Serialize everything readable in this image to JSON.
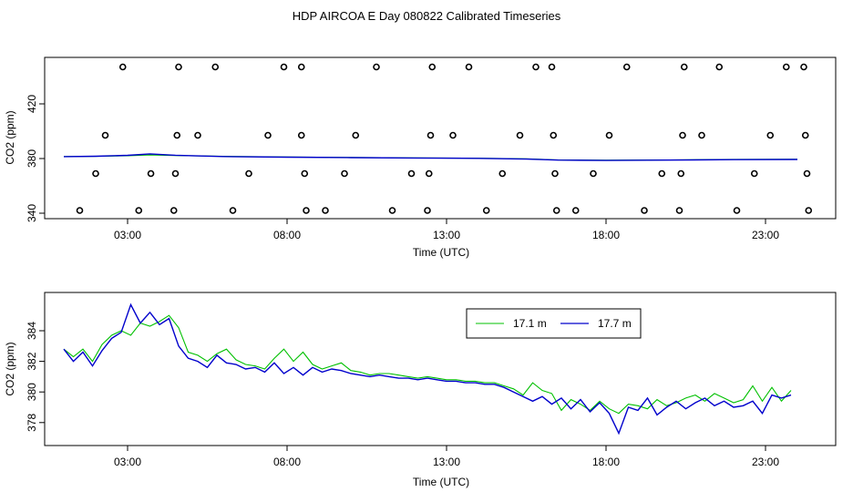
{
  "title": "HDP AIRCOA E  Day 080822  Calibrated Timeseries",
  "colors": {
    "green": "#00c000",
    "blue": "#0000cc",
    "axis": "#000000"
  },
  "chart_data": [
    {
      "type": "scatter",
      "xlabel": "Time (UTC)",
      "ylabel": "CO2 (ppm)",
      "xlim": [
        0.4,
        25.2
      ],
      "ylim": [
        336,
        454
      ],
      "x_ticks": [
        3,
        8,
        13,
        18,
        23
      ],
      "x_tick_labels": [
        "03:00",
        "08:00",
        "13:00",
        "18:00",
        "23:00"
      ],
      "y_ticks": [
        340,
        380,
        420
      ],
      "y_tick_labels": [
        "340",
        "380",
        "420"
      ],
      "grid": false,
      "series": [
        {
          "role": "calibration-points",
          "marker": "open-circle",
          "color": "#000000",
          "points": [
            [
              1.5,
              342
            ],
            [
              2.0,
              369
            ],
            [
              2.3,
              397
            ],
            [
              2.85,
              447
            ],
            [
              3.35,
              342
            ],
            [
              3.73,
              369
            ],
            [
              4.45,
              342
            ],
            [
              4.5,
              369
            ],
            [
              4.55,
              397
            ],
            [
              4.6,
              447
            ],
            [
              5.2,
              397
            ],
            [
              5.75,
              447
            ],
            [
              6.3,
              342
            ],
            [
              6.8,
              369
            ],
            [
              7.4,
              397
            ],
            [
              7.9,
              447
            ],
            [
              8.45,
              447
            ],
            [
              8.45,
              397
            ],
            [
              8.55,
              369
            ],
            [
              8.6,
              342
            ],
            [
              9.2,
              342
            ],
            [
              9.8,
              369
            ],
            [
              10.15,
              397
            ],
            [
              10.8,
              447
            ],
            [
              11.3,
              342
            ],
            [
              11.9,
              369
            ],
            [
              12.4,
              342
            ],
            [
              12.45,
              369
            ],
            [
              12.5,
              397
            ],
            [
              12.55,
              447
            ],
            [
              13.2,
              397
            ],
            [
              13.7,
              447
            ],
            [
              14.25,
              342
            ],
            [
              14.75,
              369
            ],
            [
              15.3,
              397
            ],
            [
              15.8,
              447
            ],
            [
              16.3,
              447
            ],
            [
              16.35,
              397
            ],
            [
              16.4,
              369
            ],
            [
              16.45,
              342
            ],
            [
              17.05,
              342
            ],
            [
              17.6,
              369
            ],
            [
              18.1,
              397
            ],
            [
              18.65,
              447
            ],
            [
              19.2,
              342
            ],
            [
              19.75,
              369
            ],
            [
              20.3,
              342
            ],
            [
              20.35,
              369
            ],
            [
              20.4,
              397
            ],
            [
              20.45,
              447
            ],
            [
              21.0,
              397
            ],
            [
              21.55,
              447
            ],
            [
              22.1,
              342
            ],
            [
              22.65,
              369
            ],
            [
              23.15,
              397
            ],
            [
              23.65,
              447
            ],
            [
              24.2,
              447
            ],
            [
              24.25,
              397
            ],
            [
              24.3,
              369
            ],
            [
              24.35,
              342
            ]
          ]
        },
        {
          "name": "17.1 m",
          "color": "#00c000",
          "style": "line",
          "points": [
            [
              1.0,
              381.5
            ],
            [
              2.0,
              381.6
            ],
            [
              3.0,
              382.0
            ],
            [
              3.7,
              382.6
            ],
            [
              4.5,
              382.2
            ],
            [
              6.0,
              381.6
            ],
            [
              8.0,
              381.1
            ],
            [
              10.0,
              380.8
            ],
            [
              12.0,
              380.5
            ],
            [
              14.0,
              380.2
            ],
            [
              15.5,
              379.8
            ],
            [
              16.5,
              379.0
            ],
            [
              18.0,
              378.8
            ],
            [
              20.0,
              379.0
            ],
            [
              22.0,
              379.4
            ],
            [
              24.0,
              379.5
            ]
          ]
        },
        {
          "name": "17.7 m",
          "color": "#0000cc",
          "style": "line",
          "points": [
            [
              1.0,
              381.4
            ],
            [
              2.0,
              381.7
            ],
            [
              3.0,
              382.3
            ],
            [
              3.7,
              383.4
            ],
            [
              4.5,
              382.4
            ],
            [
              6.0,
              381.5
            ],
            [
              8.0,
              381.0
            ],
            [
              10.0,
              380.7
            ],
            [
              12.0,
              380.4
            ],
            [
              14.0,
              380.1
            ],
            [
              15.5,
              379.6
            ],
            [
              16.5,
              378.9
            ],
            [
              18.0,
              378.6
            ],
            [
              20.0,
              378.9
            ],
            [
              22.0,
              379.2
            ],
            [
              24.0,
              379.3
            ]
          ]
        }
      ]
    },
    {
      "type": "line",
      "xlabel": "Time (UTC)",
      "ylabel": "CO2 (ppm)",
      "xlim": [
        0.4,
        25.2
      ],
      "ylim": [
        376.5,
        386.5
      ],
      "x_ticks": [
        3,
        8,
        13,
        18,
        23
      ],
      "x_tick_labels": [
        "03:00",
        "08:00",
        "13:00",
        "18:00",
        "23:00"
      ],
      "y_ticks": [
        378,
        380,
        382,
        384
      ],
      "y_tick_labels": [
        "378",
        "380",
        "382",
        "384"
      ],
      "grid": false,
      "legend": {
        "placement": "top-center",
        "entries": [
          "17.1 m",
          "17.7 m"
        ]
      },
      "series": [
        {
          "name": "17.1 m",
          "color": "#00c000",
          "points": [
            [
              1.0,
              382.8
            ],
            [
              1.3,
              382.3
            ],
            [
              1.6,
              382.8
            ],
            [
              1.9,
              382.0
            ],
            [
              2.2,
              383.1
            ],
            [
              2.5,
              383.7
            ],
            [
              2.8,
              384.0
            ],
            [
              3.1,
              383.7
            ],
            [
              3.4,
              384.5
            ],
            [
              3.7,
              384.3
            ],
            [
              4.0,
              384.6
            ],
            [
              4.3,
              385.0
            ],
            [
              4.6,
              384.2
            ],
            [
              4.9,
              382.6
            ],
            [
              5.2,
              382.4
            ],
            [
              5.5,
              382.0
            ],
            [
              5.8,
              382.5
            ],
            [
              6.1,
              382.8
            ],
            [
              6.4,
              382.1
            ],
            [
              6.7,
              381.8
            ],
            [
              7.0,
              381.7
            ],
            [
              7.3,
              381.5
            ],
            [
              7.6,
              382.2
            ],
            [
              7.9,
              382.8
            ],
            [
              8.2,
              382.0
            ],
            [
              8.5,
              382.6
            ],
            [
              8.8,
              381.8
            ],
            [
              9.1,
              381.5
            ],
            [
              9.4,
              381.7
            ],
            [
              9.7,
              381.9
            ],
            [
              10.0,
              381.4
            ],
            [
              10.3,
              381.3
            ],
            [
              10.6,
              381.1
            ],
            [
              10.9,
              381.2
            ],
            [
              11.2,
              381.2
            ],
            [
              11.5,
              381.1
            ],
            [
              11.8,
              381.0
            ],
            [
              12.1,
              380.9
            ],
            [
              12.4,
              381.0
            ],
            [
              12.7,
              380.9
            ],
            [
              13.0,
              380.8
            ],
            [
              13.3,
              380.8
            ],
            [
              13.6,
              380.7
            ],
            [
              13.9,
              380.7
            ],
            [
              14.2,
              380.6
            ],
            [
              14.5,
              380.6
            ],
            [
              14.8,
              380.4
            ],
            [
              15.1,
              380.2
            ],
            [
              15.4,
              379.8
            ],
            [
              15.7,
              380.6
            ],
            [
              16.0,
              380.1
            ],
            [
              16.3,
              379.9
            ],
            [
              16.6,
              378.8
            ],
            [
              16.9,
              379.5
            ],
            [
              17.2,
              379.2
            ],
            [
              17.5,
              378.8
            ],
            [
              17.8,
              379.4
            ],
            [
              18.1,
              378.9
            ],
            [
              18.4,
              378.6
            ],
            [
              18.7,
              379.2
            ],
            [
              19.0,
              379.1
            ],
            [
              19.3,
              378.9
            ],
            [
              19.6,
              379.5
            ],
            [
              19.9,
              379.1
            ],
            [
              20.2,
              379.3
            ],
            [
              20.5,
              379.6
            ],
            [
              20.8,
              379.8
            ],
            [
              21.1,
              379.4
            ],
            [
              21.4,
              379.9
            ],
            [
              21.7,
              379.6
            ],
            [
              22.0,
              379.3
            ],
            [
              22.3,
              379.5
            ],
            [
              22.6,
              380.4
            ],
            [
              22.9,
              379.4
            ],
            [
              23.2,
              380.3
            ],
            [
              23.5,
              379.4
            ],
            [
              23.8,
              380.1
            ]
          ]
        },
        {
          "name": "17.7 m",
          "color": "#0000cc",
          "points": [
            [
              1.0,
              382.8
            ],
            [
              1.3,
              382.0
            ],
            [
              1.6,
              382.6
            ],
            [
              1.9,
              381.7
            ],
            [
              2.2,
              382.7
            ],
            [
              2.5,
              383.5
            ],
            [
              2.8,
              383.9
            ],
            [
              3.1,
              385.7
            ],
            [
              3.4,
              384.5
            ],
            [
              3.7,
              385.2
            ],
            [
              4.0,
              384.4
            ],
            [
              4.3,
              384.8
            ],
            [
              4.6,
              383.0
            ],
            [
              4.9,
              382.2
            ],
            [
              5.2,
              382.0
            ],
            [
              5.5,
              381.6
            ],
            [
              5.8,
              382.4
            ],
            [
              6.1,
              381.9
            ],
            [
              6.4,
              381.8
            ],
            [
              6.7,
              381.5
            ],
            [
              7.0,
              381.6
            ],
            [
              7.3,
              381.3
            ],
            [
              7.6,
              381.9
            ],
            [
              7.9,
              381.2
            ],
            [
              8.2,
              381.6
            ],
            [
              8.5,
              381.1
            ],
            [
              8.8,
              381.6
            ],
            [
              9.1,
              381.3
            ],
            [
              9.4,
              381.5
            ],
            [
              9.7,
              381.4
            ],
            [
              10.0,
              381.2
            ],
            [
              10.3,
              381.1
            ],
            [
              10.6,
              381.0
            ],
            [
              10.9,
              381.1
            ],
            [
              11.2,
              381.0
            ],
            [
              11.5,
              380.9
            ],
            [
              11.8,
              380.9
            ],
            [
              12.1,
              380.8
            ],
            [
              12.4,
              380.9
            ],
            [
              12.7,
              380.8
            ],
            [
              13.0,
              380.7
            ],
            [
              13.3,
              380.7
            ],
            [
              13.6,
              380.6
            ],
            [
              13.9,
              380.6
            ],
            [
              14.2,
              380.5
            ],
            [
              14.5,
              380.5
            ],
            [
              14.8,
              380.3
            ],
            [
              15.1,
              380.0
            ],
            [
              15.4,
              379.7
            ],
            [
              15.7,
              379.4
            ],
            [
              16.0,
              379.7
            ],
            [
              16.3,
              379.2
            ],
            [
              16.6,
              379.6
            ],
            [
              16.9,
              378.9
            ],
            [
              17.2,
              379.5
            ],
            [
              17.5,
              378.7
            ],
            [
              17.8,
              379.3
            ],
            [
              18.1,
              378.6
            ],
            [
              18.4,
              377.3
            ],
            [
              18.7,
              379.0
            ],
            [
              19.0,
              378.8
            ],
            [
              19.3,
              379.6
            ],
            [
              19.6,
              378.5
            ],
            [
              19.9,
              379.0
            ],
            [
              20.2,
              379.4
            ],
            [
              20.5,
              378.9
            ],
            [
              20.8,
              379.3
            ],
            [
              21.1,
              379.6
            ],
            [
              21.4,
              379.1
            ],
            [
              21.7,
              379.4
            ],
            [
              22.0,
              379.0
            ],
            [
              22.3,
              379.1
            ],
            [
              22.6,
              379.4
            ],
            [
              22.9,
              378.6
            ],
            [
              23.2,
              379.8
            ],
            [
              23.5,
              379.6
            ],
            [
              23.8,
              379.8
            ]
          ]
        }
      ]
    }
  ]
}
